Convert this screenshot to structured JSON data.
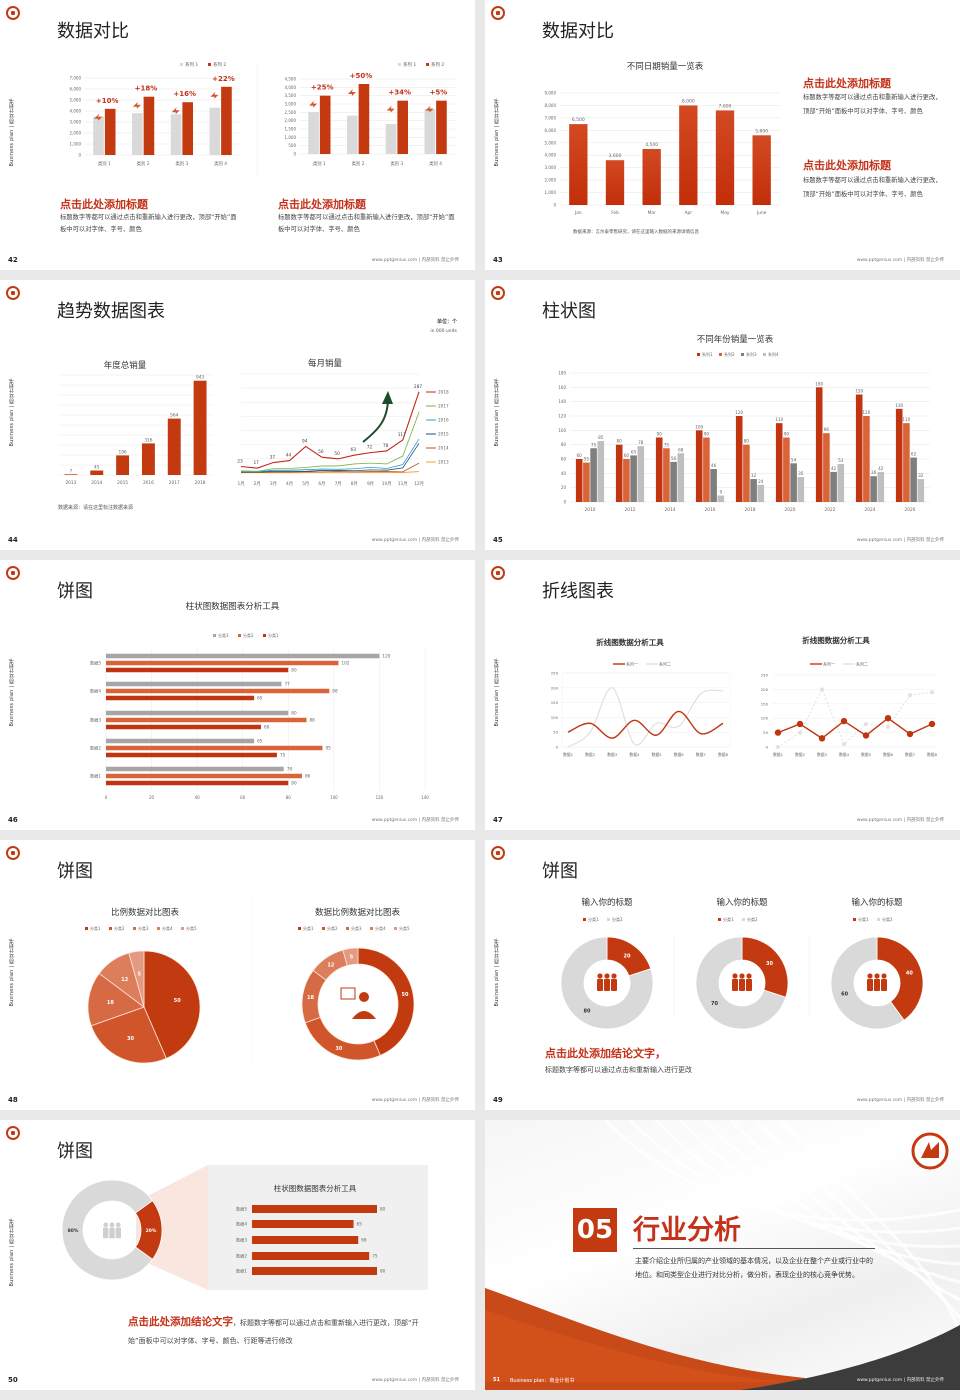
{
  "common": {
    "side_text": "Business plan | 商业计划书",
    "footer": "www.pptgenius.com | 内部资料 禁止外传",
    "accent": "#c43a10",
    "gray": "#d9d9d9"
  },
  "slides": [
    {
      "page": "42",
      "title": "数据对比",
      "blocks": [
        {
          "heading": "点击此处添加标题",
          "body": "标题数字等都可以通过点击和重新输入进行更改，顶部“开始”面板中可以对字体、字号、颜色"
        },
        {
          "heading": "点击此处添加标题",
          "body": "标题数字等都可以通过点击和重新输入进行更改，顶部“开始”面板中可以对字体、字号、颜色"
        }
      ]
    },
    {
      "page": "43",
      "title": "数据对比",
      "source": "数据来源：言尔泰零售研究，请在这里输入数据的来源详情信息",
      "blocks": [
        {
          "heading": "点击此处添加标题",
          "body": "标题数字等都可以通过点击和重新输入进行更改，顶部“开始”面板中可以对字体、字号、颜色"
        },
        {
          "heading": "点击此处添加标题",
          "body": "标题数字等都可以通过点击和重新输入进行更改，顶部“开始”面板中可以对字体、字号、颜色"
        }
      ]
    },
    {
      "page": "44",
      "title": "趋势数据图表",
      "unit": "单位：个",
      "unit_en": "in 000 units",
      "source": "数据来源：请在这里标注数据来源"
    },
    {
      "page": "45",
      "title": "柱状图"
    },
    {
      "page": "46",
      "title": "饼图"
    },
    {
      "page": "47",
      "title": "折线图表"
    },
    {
      "page": "48",
      "title": "饼图"
    },
    {
      "page": "49",
      "title": "饼图",
      "conclusion": "点击此处添加结论文字，",
      "body": "标题数字等都可以通过点击和重新输入进行更改"
    },
    {
      "page": "50",
      "title": "饼图",
      "conclusion": "点击此处添加结论文字",
      "body": "，标题数字等都可以通过点击和重新输入进行更改，顶部“开始”面板中可以对字体、字号、颜色、行距等进行修改"
    },
    {
      "page": "51",
      "number": "05",
      "title": "行业分析",
      "body": "主要介绍企业所归属的产业领域的基本情况，以及企业在整个产业或行业中的地位。和同类型企业进行对比分析，做分析，表现企业的核心竞争优势。",
      "footer_label": "Business plan：商业计划书"
    }
  ],
  "chart_data": [
    {
      "type": "bar",
      "categories": [
        "类别 1",
        "类别 2",
        "类别 3",
        "类别 4"
      ],
      "series": [
        {
          "name": "系列 1",
          "values": [
            3500,
            3800,
            3700,
            4300
          ]
        },
        {
          "name": "系列 2",
          "values": [
            4200,
            5300,
            4800,
            6200
          ]
        }
      ],
      "ylim": [
        0,
        7000
      ],
      "yticks": [
        "0",
        "1,000",
        "2,000",
        "3,000",
        "4,000",
        "5,000",
        "6,000",
        "7,000"
      ],
      "annotations": [
        "+10%",
        "+18%",
        "+16%",
        "+22%"
      ],
      "legend": "top-right",
      "grid": true
    },
    {
      "type": "bar",
      "categories": [
        "类别 1",
        "类别 2",
        "类别 3",
        "类别 4"
      ],
      "series": [
        {
          "name": "系列 1",
          "values": [
            2500,
            2300,
            1800,
            2700
          ]
        },
        {
          "name": "系列 2",
          "values": [
            3500,
            4200,
            3200,
            3200
          ]
        }
      ],
      "ylim": [
        0,
        4500
      ],
      "yticks": [
        "0",
        "500",
        "1,000",
        "1,500",
        "2,000",
        "2,500",
        "3,000",
        "3,500",
        "4,000",
        "4,500"
      ],
      "annotations": [
        "+25%",
        "+50%",
        "+34%",
        "+5%"
      ],
      "legend": "top-right",
      "grid": true
    },
    {
      "type": "bar",
      "title": "不同日期销量一览表",
      "categories": [
        "Jan",
        "Feb",
        "Mar",
        "Apr",
        "May",
        "June"
      ],
      "series": [
        {
          "values": [
            6500,
            3600,
            4500,
            8000,
            7600,
            5600
          ],
          "labels": [
            "6,500",
            "3,600",
            "4,500",
            "8,000",
            "7,600",
            "5,600"
          ]
        }
      ],
      "ylim": [
        0,
        9000
      ],
      "yticks": [
        "0",
        "1,000",
        "2,000",
        "3,000",
        "4,000",
        "5,000",
        "6,000",
        "7,000",
        "8,000",
        "9,000"
      ],
      "grid": true
    },
    {
      "type": "bar",
      "title": "年度总销量",
      "categories": [
        "2013",
        "2014",
        "2015",
        "2016",
        "2017",
        "2018"
      ],
      "series": [
        {
          "values": [
            7,
            45,
            196,
            316,
            564,
            943
          ]
        }
      ],
      "ylim": [
        0,
        1000
      ],
      "grid": true
    },
    {
      "type": "line",
      "title": "每月销量",
      "categories": [
        "1月",
        "2月",
        "3月",
        "4月",
        "5月",
        "6月",
        "7月",
        "8月",
        "9月",
        "10月",
        "11月",
        "12月"
      ],
      "series": [
        {
          "name": "2018",
          "values": [
            23,
            17,
            37,
            44,
            94,
            56,
            50,
            63,
            72,
            78,
            117,
            287
          ],
          "color": "#c0291a"
        },
        {
          "name": "2017",
          "values": [
            8,
            6,
            15,
            16,
            20,
            25,
            25,
            32,
            35,
            32,
            60,
            215
          ],
          "color": "#7cb342"
        },
        {
          "name": "2016",
          "values": [
            5,
            4,
            10,
            10,
            12,
            14,
            13,
            15,
            20,
            16,
            30,
            120
          ],
          "color": "#29a0c9"
        },
        {
          "name": "2015",
          "values": [
            4,
            3,
            6,
            6,
            6,
            9,
            9,
            8,
            11,
            10,
            18,
            105
          ],
          "color": "#1f4e79"
        },
        {
          "name": "2014",
          "values": [
            2,
            2,
            3,
            3,
            4,
            4,
            5,
            4,
            5,
            5,
            4,
            35
          ],
          "color": "#c0501a"
        },
        {
          "name": "2013",
          "values": [
            1,
            1,
            1,
            1,
            1,
            1,
            1,
            1,
            2,
            2,
            2,
            5
          ],
          "color": "#f0a030"
        }
      ],
      "ylim": [
        0,
        350
      ],
      "legend": "right",
      "grid": true
    },
    {
      "type": "bar",
      "title": "不同年份销量一览表",
      "categories": [
        "2010",
        "2012",
        "2014",
        "2016",
        "2018",
        "2020",
        "2022",
        "2024",
        "2026"
      ],
      "series": [
        {
          "name": "系列1",
          "values": [
            60,
            80,
            90,
            100,
            120,
            110,
            160,
            150,
            130
          ],
          "color": "#c0350f"
        },
        {
          "name": "系列2",
          "values": [
            55,
            60,
            75,
            90,
            80,
            90,
            96,
            120,
            110
          ],
          "color": "#d9643a"
        },
        {
          "name": "系列3",
          "values": [
            75,
            65,
            56,
            46,
            32,
            54,
            42,
            36,
            62
          ],
          "color": "#7f7f7f"
        },
        {
          "name": "系列4",
          "values": [
            85,
            78,
            68,
            9,
            24,
            35,
            53,
            42,
            32
          ],
          "color": "#bfbfbf"
        }
      ],
      "ylim": [
        0,
        180
      ],
      "yticks": [
        "0",
        "20",
        "40",
        "60",
        "80",
        "100",
        "120",
        "140",
        "160",
        "180"
      ],
      "legend": "top",
      "grid": true
    },
    {
      "type": "bar",
      "orientation": "horizontal",
      "title": "柱状图数据图表分析工具",
      "categories": [
        "数据5",
        "数据4",
        "数据3",
        "数据2",
        "数据1"
      ],
      "series": [
        {
          "name": "分类3",
          "values": [
            120,
            77,
            80,
            65,
            78
          ],
          "color": "#a6a6a6"
        },
        {
          "name": "分类2",
          "values": [
            102,
            98,
            88,
            95,
            86
          ],
          "color": "#d9643a"
        },
        {
          "name": "分类1",
          "values": [
            80,
            65,
            68,
            75,
            80
          ],
          "color": "#c0350f"
        }
      ],
      "xlim": [
        0,
        140
      ],
      "xticks": [
        "0",
        "20",
        "40",
        "60",
        "80",
        "100",
        "120",
        "140"
      ],
      "legend": "top",
      "grid": true
    },
    {
      "type": "line",
      "title": "折线图数据分析工具",
      "categories": [
        "数据1",
        "数据2",
        "数据3",
        "数据4",
        "数据5",
        "数据6",
        "数据7",
        "数据8"
      ],
      "series": [
        {
          "name": "系列一",
          "values": [
            50,
            80,
            30,
            90,
            40,
            120,
            45,
            80
          ],
          "color": "#c0350f"
        },
        {
          "name": "系列二",
          "values": [
            0,
            50,
            200,
            10,
            80,
            70,
            180,
            190
          ],
          "color": "#e0e0e0"
        }
      ],
      "ylim": [
        0,
        250
      ],
      "yticks": [
        "0",
        "50",
        "100",
        "150",
        "200",
        "250"
      ],
      "smooth": true,
      "legend": "top"
    },
    {
      "type": "line",
      "title": "折线图数据分析工具",
      "categories": [
        "数据1",
        "数据2",
        "数据3",
        "数据4",
        "数据5",
        "数据6",
        "数据7",
        "数据8"
      ],
      "series": [
        {
          "name": "系列一",
          "values": [
            50,
            80,
            30,
            90,
            40,
            100,
            45,
            80
          ],
          "color": "#c0350f"
        },
        {
          "name": "系列二",
          "values": [
            0,
            50,
            200,
            10,
            80,
            70,
            180,
            190
          ],
          "color": "#e0e0e0"
        }
      ],
      "ylim": [
        0,
        250
      ],
      "yticks": [
        "0",
        "50",
        "100",
        "150",
        "200",
        "250"
      ],
      "markers": true,
      "legend": "top"
    },
    {
      "type": "pie",
      "title": "比例数据对比图表",
      "categories": [
        "分类1",
        "分类2",
        "分类3",
        "分类4",
        "分类5"
      ],
      "values": [
        50,
        30,
        18,
        12,
        5
      ],
      "colors": [
        "#c23a0f",
        "#d0552b",
        "#d66a44",
        "#dc7d5c",
        "#e39a80"
      ],
      "legend": "top"
    },
    {
      "type": "pie",
      "donut": true,
      "title": "数据比例数据对比图表",
      "categories": [
        "分类1",
        "分类2",
        "分类3",
        "分类4",
        "分类5"
      ],
      "values": [
        50,
        30,
        18,
        12,
        5
      ],
      "colors": [
        "#c23a0f",
        "#d0552b",
        "#d66a44",
        "#dc7d5c",
        "#e39a80"
      ],
      "legend": "top"
    },
    {
      "type": "pie",
      "donut": true,
      "title": "输入你的标题",
      "categories": [
        "分类1",
        "分类2"
      ],
      "values": [
        20,
        80
      ],
      "colors": [
        "#c43a10",
        "#d9d9d9"
      ],
      "legend": "top"
    },
    {
      "type": "pie",
      "donut": true,
      "title": "输入你的标题",
      "categories": [
        "分类1",
        "分类2"
      ],
      "values": [
        30,
        70
      ],
      "colors": [
        "#c43a10",
        "#d9d9d9"
      ],
      "legend": "top"
    },
    {
      "type": "pie",
      "donut": true,
      "title": "输入你的标题",
      "categories": [
        "分类1",
        "分类2"
      ],
      "values": [
        40,
        60
      ],
      "colors": [
        "#c43a10",
        "#d9d9d9"
      ],
      "legend": "top"
    },
    {
      "type": "pie",
      "donut": true,
      "values": [
        20,
        80
      ],
      "labels": [
        "20%",
        "80%"
      ],
      "colors": [
        "#c43a10",
        "#d9d9d9"
      ]
    },
    {
      "type": "bar",
      "orientation": "horizontal",
      "title": "柱状图数据图表分析工具",
      "categories": [
        "数据5",
        "数据4",
        "数据3",
        "数据2",
        "数据1"
      ],
      "series": [
        {
          "values": [
            80,
            65,
            68,
            75,
            80
          ],
          "color": "#c43a10"
        }
      ]
    }
  ]
}
